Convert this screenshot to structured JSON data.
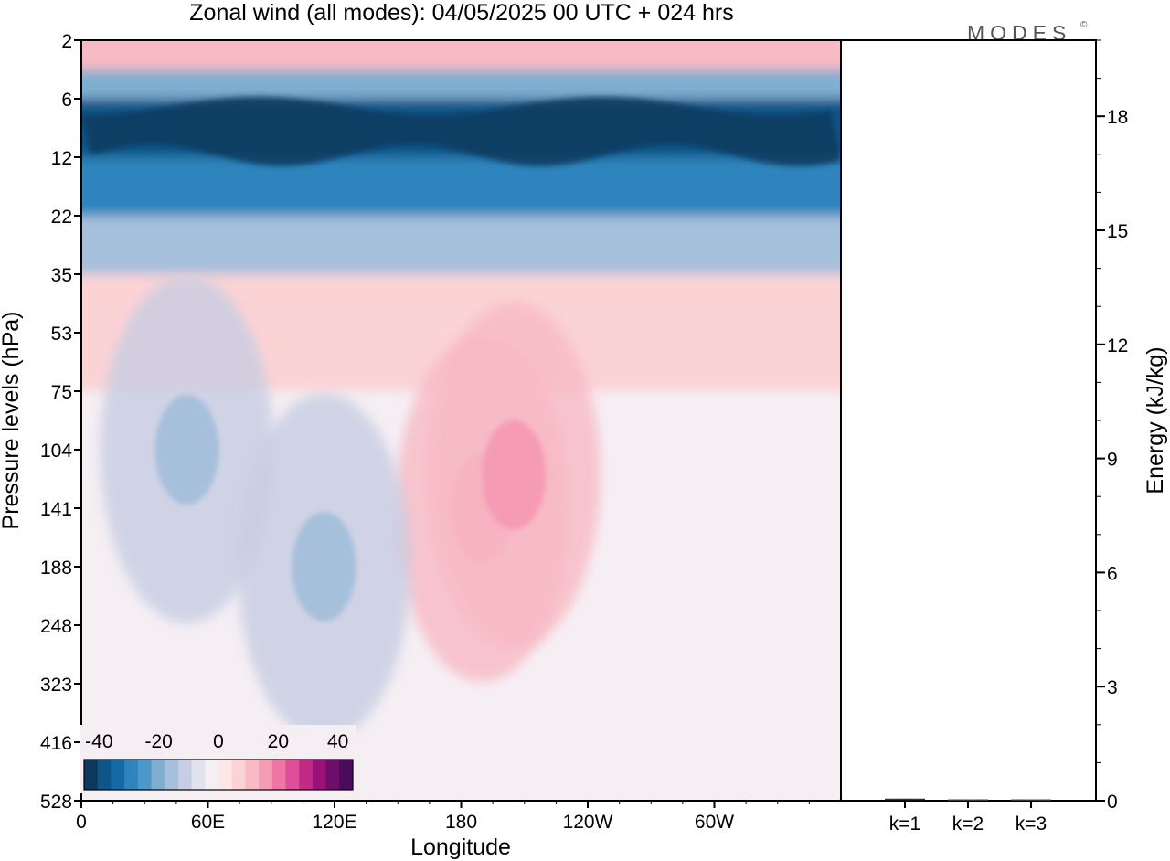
{
  "title": "Zonal wind (all modes):  04/05/2025  00 UTC  + 024 hrs",
  "brand": "MODES",
  "brand_mark": "©",
  "colors": {
    "negative": [
      "#0b3a5e",
      "#0f5587",
      "#1569a6",
      "#2e84bc",
      "#4e98c7",
      "#80aed0",
      "#a6bfdb",
      "#c8cde2",
      "#e2e1ee"
    ],
    "neutral": "#f5eff4",
    "positive": [
      "#fde7e7",
      "#fbd3d5",
      "#f8bac4",
      "#f59bb4",
      "#ef75a3",
      "#de4f9a",
      "#c22a8a",
      "#9b1178",
      "#6e0d6b",
      "#4a0b5a"
    ]
  },
  "chart_data": [
    {
      "type": "heatmap",
      "title": "Zonal wind (all modes):  04/05/2025  00 UTC  + 024 hrs",
      "xlabel": "Longitude",
      "ylabel": "Pressure levels (hPa)",
      "x_ticks": [
        "0",
        "60E",
        "120E",
        "180",
        "120W",
        "60W"
      ],
      "y_ticks": [
        "2",
        "6",
        "12",
        "22",
        "35",
        "53",
        "75",
        "104",
        "141",
        "188",
        "248",
        "323",
        "416",
        "528"
      ],
      "colorbar": {
        "ticks": [
          "-40",
          "-20",
          "0",
          "20",
          "40"
        ],
        "range": [
          -45,
          45
        ],
        "step": 5
      },
      "bands": [
        {
          "top": 2,
          "bottom": 4,
          "value": 10
        },
        {
          "top": 4,
          "bottom": 6,
          "value": -15
        },
        {
          "top": 6,
          "bottom": 12,
          "value": -35
        },
        {
          "top": 12,
          "bottom": 22,
          "value": -25
        },
        {
          "top": 22,
          "bottom": 35,
          "value": -10
        },
        {
          "top": 35,
          "bottom": 75,
          "value": 5
        },
        {
          "top": 75,
          "bottom": 528,
          "value": 0
        }
      ],
      "features": [
        {
          "lon": 190,
          "level": 141,
          "value": 15
        },
        {
          "lon": 205,
          "level": 120,
          "value": 15
        },
        {
          "lon": 50,
          "level": 104,
          "value": -10
        },
        {
          "lon": 115,
          "level": 188,
          "value": -10
        }
      ]
    },
    {
      "type": "bar",
      "categories": [
        "k=1",
        "k=2",
        "k=3"
      ],
      "values": [
        0.03,
        0.01,
        0.01
      ],
      "ylabel": "Energy (kJ/kg)",
      "y_ticks": [
        "0",
        "3",
        "6",
        "9",
        "12",
        "15",
        "18"
      ],
      "ylim": [
        0,
        20
      ]
    }
  ]
}
